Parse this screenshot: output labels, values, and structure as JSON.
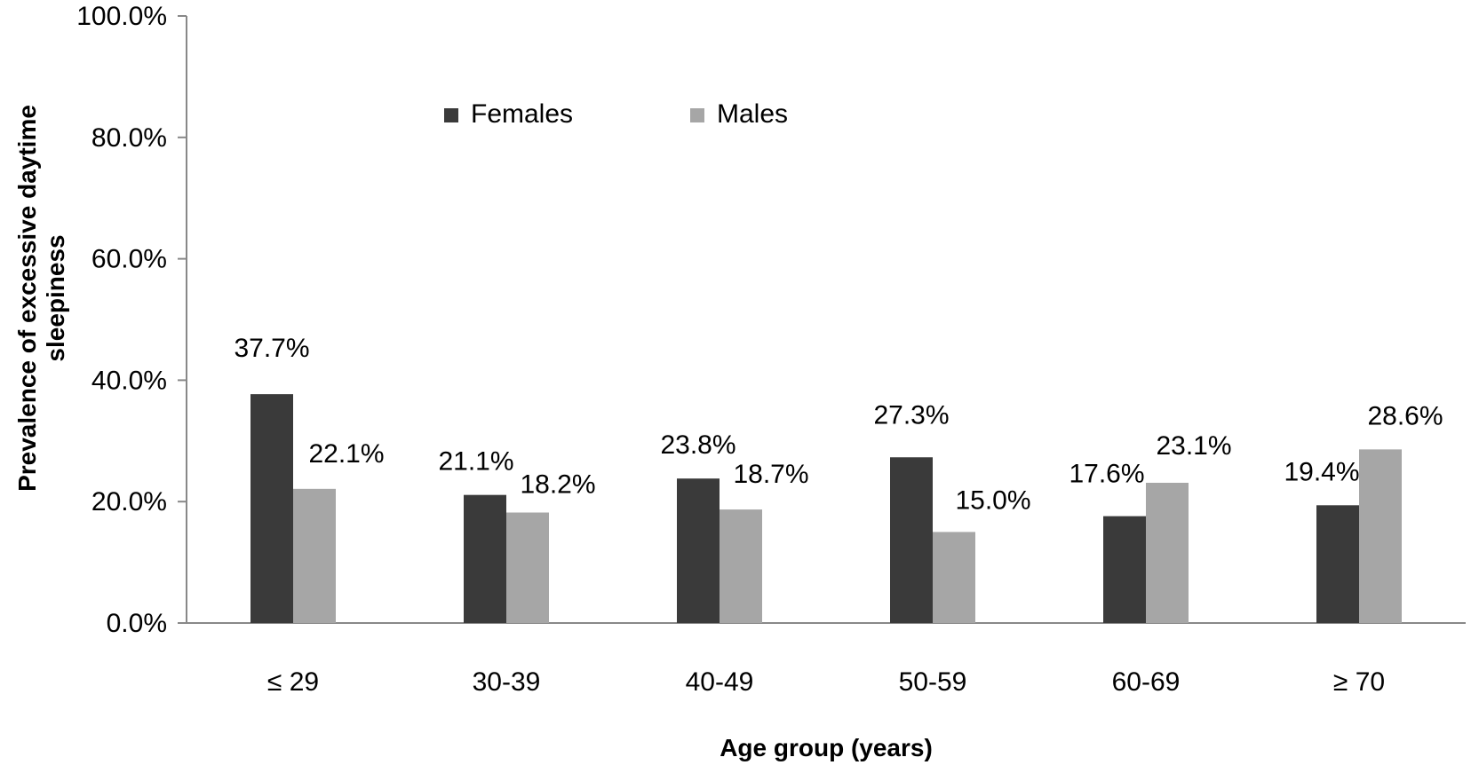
{
  "chart_data": {
    "type": "bar",
    "categories": [
      "≤ 29",
      "30-39",
      "40-49",
      "50-59",
      "60-69",
      "≥ 70"
    ],
    "series": [
      {
        "name": "Females",
        "color": "#3a3a3a",
        "values": [
          37.7,
          21.1,
          23.8,
          27.3,
          17.6,
          19.4
        ],
        "labels": [
          "37.7%",
          "21.1%",
          "23.8%",
          "27.3%",
          "17.6%",
          "19.4%"
        ]
      },
      {
        "name": "Males",
        "color": "#a6a6a6",
        "values": [
          22.1,
          18.2,
          18.7,
          15.0,
          23.1,
          28.6
        ],
        "labels": [
          "22.1%",
          "18.2%",
          "18.7%",
          "15.0%",
          "23.1%",
          "28.6%"
        ]
      }
    ],
    "yticks": [
      "0.0%",
      "20.0%",
      "40.0%",
      "60.0%",
      "80.0%",
      "100.0%"
    ],
    "ylim": [
      0,
      100
    ],
    "xlabel": "Age group (years)",
    "ylabel_lines": [
      "Prevalence of excessive daytime",
      "sleepiness"
    ],
    "legend_position": "top-left",
    "grid": false
  }
}
